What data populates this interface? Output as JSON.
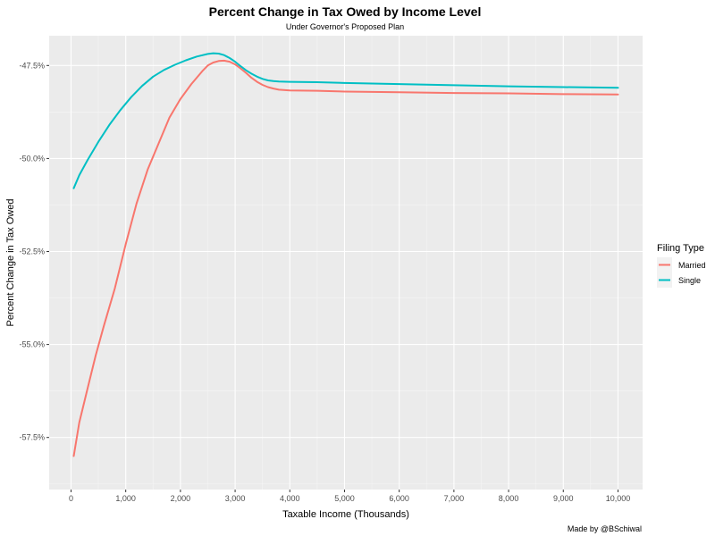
{
  "chart_data": {
    "type": "line",
    "title": "Percent Change in Tax Owed by Income Level",
    "subtitle": "Under Governor's Proposed Plan",
    "xlabel": "Taxable Income (Thousands)",
    "ylabel": "Percent Change in Tax Owed",
    "caption": "Made by @BSchiwal",
    "xlim": [
      -400,
      10450
    ],
    "ylim": [
      -58.9,
      -46.7
    ],
    "x_ticks": [
      0,
      1000,
      2000,
      3000,
      4000,
      5000,
      6000,
      7000,
      8000,
      9000,
      10000
    ],
    "x_tick_labels": [
      "0",
      "1,000",
      "2,000",
      "3,000",
      "4,000",
      "5,000",
      "6,000",
      "7,000",
      "8,000",
      "9,000",
      "10,000"
    ],
    "y_ticks": [
      -57.5,
      -55.0,
      -52.5,
      -50.0,
      -47.5
    ],
    "y_tick_labels": [
      "-57.5%",
      "-55.0%",
      "-52.5%",
      "-50.0%",
      "-47.5%"
    ],
    "grid": true,
    "legend": {
      "title": "Filing Type",
      "position": "right"
    },
    "series": [
      {
        "name": "Married",
        "color": "#F8766D",
        "x": [
          50,
          150,
          300,
          450,
          600,
          800,
          1000,
          1200,
          1400,
          1600,
          1800,
          2000,
          2200,
          2400,
          2500,
          2600,
          2700,
          2800,
          2900,
          3000,
          3100,
          3200,
          3300,
          3400,
          3500,
          3600,
          3700,
          3800,
          4000,
          4500,
          5000,
          6000,
          7000,
          8000,
          9000,
          10000
        ],
        "y": [
          -58.0,
          -57.1,
          -56.2,
          -55.3,
          -54.5,
          -53.5,
          -52.3,
          -51.2,
          -50.3,
          -49.6,
          -48.9,
          -48.4,
          -48.0,
          -47.65,
          -47.5,
          -47.42,
          -47.38,
          -47.37,
          -47.4,
          -47.47,
          -47.58,
          -47.7,
          -47.83,
          -47.94,
          -48.02,
          -48.08,
          -48.12,
          -48.15,
          -48.17,
          -48.18,
          -48.2,
          -48.22,
          -48.24,
          -48.25,
          -48.27,
          -48.28
        ]
      },
      {
        "name": "Single",
        "color": "#00BFC4",
        "x": [
          50,
          150,
          300,
          500,
          700,
          900,
          1100,
          1300,
          1500,
          1700,
          1900,
          2100,
          2300,
          2500,
          2600,
          2700,
          2800,
          2900,
          3000,
          3100,
          3200,
          3300,
          3400,
          3500,
          3600,
          3700,
          3800,
          4000,
          4500,
          5000,
          6000,
          7000,
          8000,
          9000,
          10000
        ],
        "y": [
          -50.8,
          -50.45,
          -50.05,
          -49.55,
          -49.1,
          -48.7,
          -48.35,
          -48.05,
          -47.8,
          -47.62,
          -47.48,
          -47.36,
          -47.26,
          -47.19,
          -47.17,
          -47.18,
          -47.22,
          -47.3,
          -47.4,
          -47.52,
          -47.63,
          -47.72,
          -47.8,
          -47.86,
          -47.9,
          -47.92,
          -47.93,
          -47.94,
          -47.95,
          -47.97,
          -48.0,
          -48.03,
          -48.06,
          -48.08,
          -48.1
        ]
      }
    ]
  }
}
